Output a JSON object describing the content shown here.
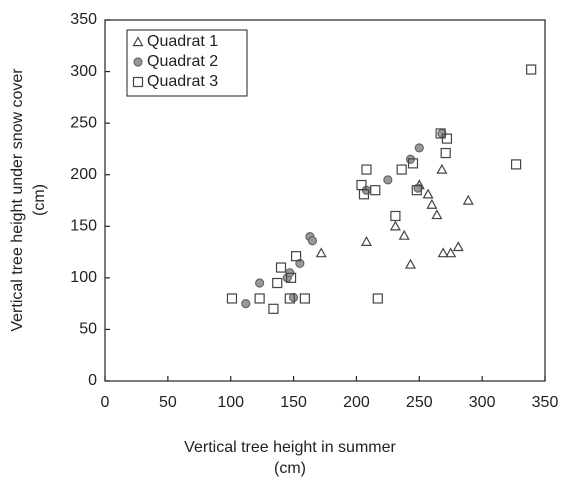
{
  "chart_data": {
    "type": "scatter",
    "x_label": [
      "Vertical tree height in summer",
      "(cm)"
    ],
    "y_label": [
      "Vertical tree height under snow cover",
      "(cm)"
    ],
    "xlim": [
      0,
      350
    ],
    "xticks": [
      0,
      50,
      100,
      150,
      200,
      250,
      300,
      350
    ],
    "ylim": [
      0,
      350
    ],
    "yticks": [
      0,
      50,
      100,
      150,
      200,
      250,
      300,
      350
    ],
    "legend": "upper-left",
    "series": [
      {
        "name": "Quadrat 1",
        "marker": "triangle",
        "color": "#444",
        "x": [
          172,
          208,
          231,
          238,
          243,
          250,
          257,
          260,
          264,
          268,
          269,
          275,
          281,
          289
        ],
        "values": [
          124,
          135,
          150,
          141,
          113,
          190,
          181,
          171,
          161,
          205,
          124,
          124,
          130,
          175
        ]
      },
      {
        "name": "Quadrat 2",
        "marker": "circle",
        "color": "#666",
        "x": [
          112,
          123,
          145,
          147,
          150,
          155,
          163,
          165,
          208,
          225,
          243,
          249,
          250,
          268
        ],
        "values": [
          75,
          95,
          100,
          105,
          81,
          114,
          140,
          136,
          185,
          195,
          215,
          187,
          226,
          240
        ]
      },
      {
        "name": "Quadrat 3",
        "marker": "square",
        "color": "#444",
        "x": [
          101,
          123,
          134,
          137,
          140,
          147,
          148,
          152,
          159,
          204,
          206,
          208,
          215,
          217,
          231,
          236,
          245,
          248,
          267,
          271,
          272,
          327,
          339
        ],
        "values": [
          80,
          80,
          70,
          95,
          110,
          80,
          100,
          121,
          80,
          190,
          181,
          205,
          185,
          80,
          160,
          205,
          211,
          185,
          240,
          221,
          235,
          210,
          302
        ]
      }
    ]
  }
}
